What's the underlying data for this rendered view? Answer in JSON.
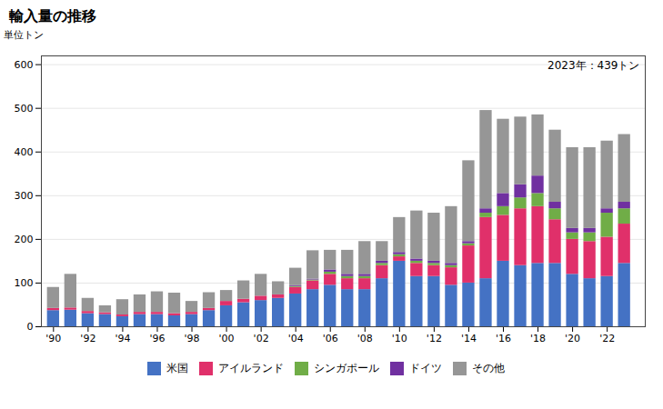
{
  "chart_data": {
    "type": "bar",
    "stacked": true,
    "title": "輸入量の推移",
    "ylabel": "単位トン",
    "annotation": "2023年：439トン",
    "x": [
      1990,
      1991,
      1992,
      1993,
      1994,
      1995,
      1996,
      1997,
      1998,
      1999,
      2000,
      2001,
      2002,
      2003,
      2004,
      2005,
      2006,
      2007,
      2008,
      2009,
      2010,
      2011,
      2012,
      2013,
      2014,
      2015,
      2016,
      2017,
      2018,
      2019,
      2020,
      2021,
      2022,
      2023
    ],
    "series": [
      {
        "name": "米国",
        "color": "#4472C4",
        "values": [
          37,
          38,
          30,
          28,
          23,
          28,
          28,
          25,
          28,
          37,
          48,
          55,
          60,
          65,
          75,
          85,
          95,
          85,
          85,
          110,
          150,
          115,
          115,
          95,
          100,
          110,
          150,
          140,
          145,
          145,
          120,
          110,
          115,
          145
        ]
      },
      {
        "name": "アイルランド",
        "color": "#E0306A",
        "values": [
          5,
          5,
          5,
          4,
          4,
          5,
          5,
          5,
          5,
          5,
          10,
          8,
          10,
          8,
          15,
          20,
          25,
          25,
          25,
          30,
          10,
          30,
          25,
          40,
          85,
          140,
          105,
          130,
          130,
          100,
          80,
          85,
          90,
          90
        ]
      },
      {
        "name": "シンガポール",
        "color": "#70AD47",
        "values": [
          0,
          0,
          0,
          0,
          0,
          0,
          0,
          0,
          0,
          0,
          0,
          0,
          0,
          0,
          2,
          2,
          5,
          5,
          5,
          5,
          5,
          5,
          5,
          5,
          5,
          10,
          20,
          25,
          30,
          25,
          15,
          20,
          55,
          35
        ]
      },
      {
        "name": "ドイツ",
        "color": "#7030A0",
        "values": [
          0,
          0,
          0,
          0,
          0,
          0,
          0,
          0,
          0,
          0,
          0,
          0,
          0,
          0,
          2,
          2,
          5,
          5,
          5,
          5,
          5,
          5,
          5,
          5,
          5,
          10,
          30,
          30,
          40,
          15,
          10,
          10,
          10,
          15
        ]
      },
      {
        "name": "その他",
        "color": "#969696",
        "values": [
          48,
          77,
          30,
          16,
          35,
          40,
          47,
          47,
          25,
          36,
          25,
          42,
          50,
          30,
          40,
          65,
          45,
          55,
          75,
          45,
          80,
          110,
          110,
          130,
          185,
          225,
          170,
          155,
          140,
          165,
          185,
          185,
          155,
          155
        ]
      }
    ],
    "xlim": [
      1989.3,
      2024.2
    ],
    "xticks": [
      {
        "value": 1990,
        "label": "'90"
      },
      {
        "value": 1992,
        "label": "'92"
      },
      {
        "value": 1994,
        "label": "'94"
      },
      {
        "value": 1996,
        "label": "'96"
      },
      {
        "value": 1998,
        "label": "'98"
      },
      {
        "value": 2000,
        "label": "'00"
      },
      {
        "value": 2002,
        "label": "'02"
      },
      {
        "value": 2004,
        "label": "'04"
      },
      {
        "value": 2006,
        "label": "'06"
      },
      {
        "value": 2008,
        "label": "'08"
      },
      {
        "value": 2010,
        "label": "'10"
      },
      {
        "value": 2012,
        "label": "'12"
      },
      {
        "value": 2014,
        "label": "'14"
      },
      {
        "value": 2016,
        "label": "'16"
      },
      {
        "value": 2018,
        "label": "'18"
      },
      {
        "value": 2020,
        "label": "'20"
      },
      {
        "value": 2022,
        "label": "'22"
      }
    ],
    "ylim": [
      0,
      620
    ],
    "yticks": [
      0,
      100,
      200,
      300,
      400,
      500,
      600
    ],
    "grid": true,
    "legend": "bottom"
  }
}
